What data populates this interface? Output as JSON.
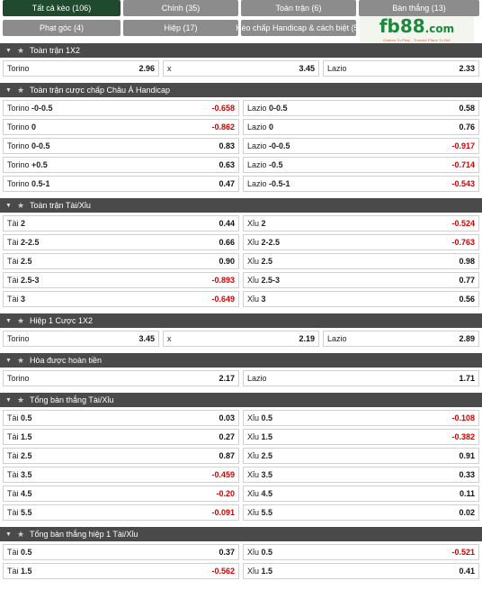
{
  "tabs": [
    {
      "label": "Tất cả kèo (106)",
      "active": true
    },
    {
      "label": "Chính (35)",
      "active": false
    },
    {
      "label": "Toàn trận (6)",
      "active": false
    },
    {
      "label": "Bàn thắng (13)",
      "active": false
    },
    {
      "label": "Phạt góc (4)",
      "active": false
    },
    {
      "label": "Hiệp (17)",
      "active": false
    },
    {
      "label": "Kèo chấp Handicap & cách biệt (5)",
      "active": false
    }
  ],
  "logo": {
    "brand": "fb88",
    "suffix": ".com",
    "tagline": "Games To Play - Trusted Place To Bet"
  },
  "colors": {
    "active_tab": "#1f4a2e",
    "tab": "#8c8c8c",
    "header": "#4a4a4a",
    "negative": "#d40000"
  },
  "sections": [
    {
      "title": "Toàn trận 1X2",
      "rows": [
        [
          {
            "team": "Torino",
            "line": "",
            "odds": "2.96"
          },
          {
            "team": "x",
            "line": "",
            "odds": "3.45"
          },
          {
            "team": "Lazio",
            "line": "",
            "odds": "2.33"
          }
        ]
      ]
    },
    {
      "title": "Toàn trận cược chấp Châu Á Handicap",
      "rows": [
        [
          {
            "team": "Torino",
            "line": "-0-0.5",
            "odds": "-0.658"
          },
          {
            "team": "Lazio",
            "line": "0-0.5",
            "odds": "0.58"
          }
        ],
        [
          {
            "team": "Torino",
            "line": "0",
            "odds": "-0.862"
          },
          {
            "team": "Lazio",
            "line": "0",
            "odds": "0.76"
          }
        ],
        [
          {
            "team": "Torino",
            "line": "0-0.5",
            "odds": "0.83"
          },
          {
            "team": "Lazio",
            "line": "-0-0.5",
            "odds": "-0.917"
          }
        ],
        [
          {
            "team": "Torino",
            "line": "+0.5",
            "odds": "0.63"
          },
          {
            "team": "Lazio",
            "line": "-0.5",
            "odds": "-0.714"
          }
        ],
        [
          {
            "team": "Torino",
            "line": "0.5-1",
            "odds": "0.47"
          },
          {
            "team": "Lazio",
            "line": "-0.5-1",
            "odds": "-0.543"
          }
        ]
      ]
    },
    {
      "title": "Toàn trận Tài/Xỉu",
      "rows": [
        [
          {
            "team": "Tài",
            "line": "2",
            "odds": "0.44"
          },
          {
            "team": "Xỉu",
            "line": "2",
            "odds": "-0.524"
          }
        ],
        [
          {
            "team": "Tài",
            "line": "2-2.5",
            "odds": "0.66"
          },
          {
            "team": "Xỉu",
            "line": "2-2.5",
            "odds": "-0.763"
          }
        ],
        [
          {
            "team": "Tài",
            "line": "2.5",
            "odds": "0.90"
          },
          {
            "team": "Xỉu",
            "line": "2.5",
            "odds": "0.98"
          }
        ],
        [
          {
            "team": "Tài",
            "line": "2.5-3",
            "odds": "-0.893"
          },
          {
            "team": "Xỉu",
            "line": "2.5-3",
            "odds": "0.77"
          }
        ],
        [
          {
            "team": "Tài",
            "line": "3",
            "odds": "-0.649"
          },
          {
            "team": "Xỉu",
            "line": "3",
            "odds": "0.56"
          }
        ]
      ]
    },
    {
      "title": "Hiệp 1 Cược 1X2",
      "rows": [
        [
          {
            "team": "Torino",
            "line": "",
            "odds": "3.45"
          },
          {
            "team": "x",
            "line": "",
            "odds": "2.19"
          },
          {
            "team": "Lazio",
            "line": "",
            "odds": "2.89"
          }
        ]
      ]
    },
    {
      "title": "Hòa được hoàn tiền",
      "rows": [
        [
          {
            "team": "Torino",
            "line": "",
            "odds": "2.17"
          },
          {
            "team": "Lazio",
            "line": "",
            "odds": "1.71"
          }
        ]
      ]
    },
    {
      "title": "Tổng bàn thắng Tài/Xỉu",
      "rows": [
        [
          {
            "team": "Tài",
            "line": "0.5",
            "odds": "0.03"
          },
          {
            "team": "Xỉu",
            "line": "0.5",
            "odds": "-0.108"
          }
        ],
        [
          {
            "team": "Tài",
            "line": "1.5",
            "odds": "0.27"
          },
          {
            "team": "Xỉu",
            "line": "1.5",
            "odds": "-0.382"
          }
        ],
        [
          {
            "team": "Tài",
            "line": "2.5",
            "odds": "0.87"
          },
          {
            "team": "Xỉu",
            "line": "2.5",
            "odds": "0.91"
          }
        ],
        [
          {
            "team": "Tài",
            "line": "3.5",
            "odds": "-0.459"
          },
          {
            "team": "Xỉu",
            "line": "3.5",
            "odds": "0.33"
          }
        ],
        [
          {
            "team": "Tài",
            "line": "4.5",
            "odds": "-0.20"
          },
          {
            "team": "Xỉu",
            "line": "4.5",
            "odds": "0.11"
          }
        ],
        [
          {
            "team": "Tài",
            "line": "5.5",
            "odds": "-0.091"
          },
          {
            "team": "Xỉu",
            "line": "5.5",
            "odds": "0.02"
          }
        ]
      ]
    },
    {
      "title": "Tổng bàn thắng hiệp 1 Tài/Xỉu",
      "rows": [
        [
          {
            "team": "Tài",
            "line": "0.5",
            "odds": "0.37"
          },
          {
            "team": "Xỉu",
            "line": "0.5",
            "odds": "-0.521"
          }
        ],
        [
          {
            "team": "Tài",
            "line": "1.5",
            "odds": "-0.562"
          },
          {
            "team": "Xỉu",
            "line": "1.5",
            "odds": "0.41"
          }
        ]
      ]
    }
  ]
}
